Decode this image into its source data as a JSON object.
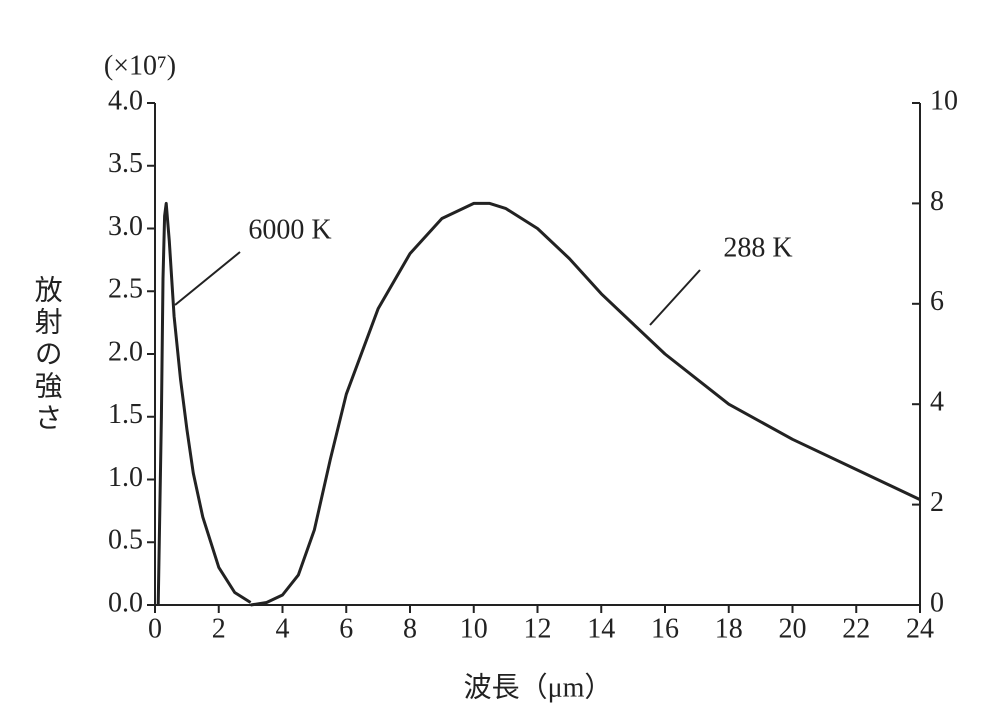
{
  "chart_data": {
    "type": "line",
    "unit_label": "(×10⁷)",
    "xlabel": "波長（μm）",
    "ylabel": "放射の強さ",
    "xlim": [
      0,
      24
    ],
    "xticks": [
      0,
      2,
      4,
      6,
      8,
      10,
      12,
      14,
      16,
      18,
      20,
      22,
      24
    ],
    "ylim": [
      0,
      4
    ],
    "yticks": [
      {
        "value": 0,
        "label": "0.0"
      },
      {
        "value": 0.5,
        "label": "0.5"
      },
      {
        "value": 1,
        "label": "1.0"
      },
      {
        "value": 1.5,
        "label": "1.5"
      },
      {
        "value": 2,
        "label": "2.0"
      },
      {
        "value": 2.5,
        "label": "2.5"
      },
      {
        "value": 3,
        "label": "3.0"
      },
      {
        "value": 3.5,
        "label": "3.5"
      },
      {
        "value": 4,
        "label": "4.0"
      }
    ],
    "y2lim": [
      0,
      10
    ],
    "y2ticks": [
      0,
      2,
      4,
      6,
      8,
      10
    ],
    "series": [
      {
        "name": "6000 K",
        "color": "#222222",
        "x": [
          0.1,
          0.2,
          0.25,
          0.3,
          0.35,
          0.45,
          0.6,
          0.8,
          1.0,
          1.2,
          1.5,
          2.0,
          2.5,
          3.0
        ],
        "values": [
          0,
          1.5,
          2.6,
          3.1,
          3.2,
          2.9,
          2.3,
          1.8,
          1.4,
          1.05,
          0.7,
          0.3,
          0.1,
          0.02
        ]
      },
      {
        "name": "288 K",
        "color": "#222222",
        "axis": "y2",
        "x": [
          3,
          3.5,
          4,
          4.5,
          5,
          5.5,
          6,
          7,
          8,
          9,
          10,
          10.5,
          11,
          12,
          13,
          14,
          15,
          16,
          18,
          20,
          22,
          24
        ],
        "values": [
          0,
          0.05,
          0.2,
          0.6,
          1.5,
          2.9,
          4.2,
          5.9,
          7.0,
          7.7,
          8.0,
          8.0,
          7.9,
          7.5,
          6.9,
          6.2,
          5.6,
          5.0,
          4.0,
          3.3,
          2.7,
          2.1
        ]
      }
    ]
  }
}
